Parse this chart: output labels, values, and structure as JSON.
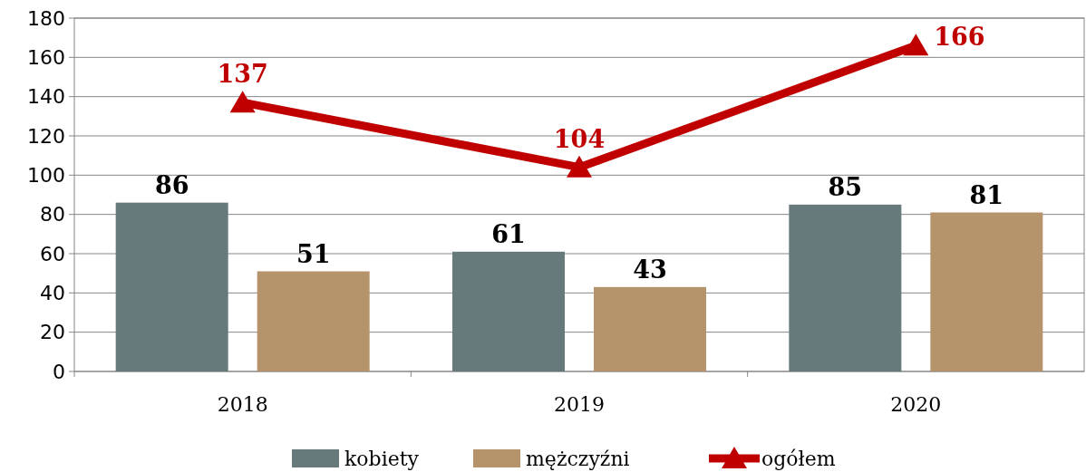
{
  "chart_data": {
    "type": "bar",
    "categories": [
      "2018",
      "2019",
      "2020"
    ],
    "series": [
      {
        "name": "kobiety",
        "color": "#677a7b",
        "values": [
          86,
          61,
          85
        ]
      },
      {
        "name": "mężczyźni",
        "color": "#b5946c",
        "values": [
          51,
          43,
          81
        ]
      },
      {
        "name": "ogółem",
        "type": "line",
        "color": "#c00000",
        "values": [
          137,
          104,
          166
        ]
      }
    ],
    "ylim": [
      0,
      180
    ],
    "yticks": [
      0,
      20,
      40,
      60,
      80,
      100,
      120,
      140,
      160,
      180
    ],
    "grid": "y",
    "legend": "bottom",
    "marker": "triangle",
    "line_style": "solid",
    "data_labels": true
  }
}
